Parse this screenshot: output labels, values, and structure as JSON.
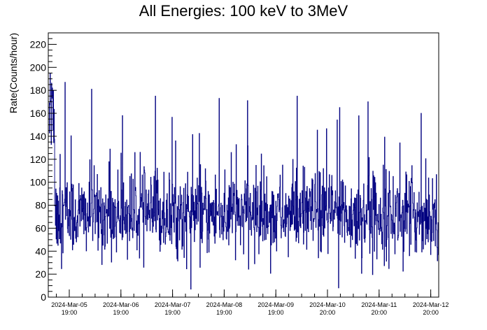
{
  "chart_data": {
    "type": "line",
    "title": "All Energies:  100 keV to 3MeV",
    "xlabel": "",
    "ylabel": "Rate(Counts/hour)",
    "ylim": [
      0,
      230
    ],
    "yticks": [
      0,
      20,
      40,
      60,
      80,
      100,
      120,
      140,
      160,
      180,
      200,
      220
    ],
    "xticks": [
      {
        "date": "2024-Mar-05",
        "time": "19:00"
      },
      {
        "date": "2024-Mar-06",
        "time": "19:00"
      },
      {
        "date": "2024-Mar-07",
        "time": "19:00"
      },
      {
        "date": "2024-Mar-08",
        "time": "19:00"
      },
      {
        "date": "2024-Mar-09",
        "time": "19:00"
      },
      {
        "date": "2024-Mar-10",
        "time": "20:00"
      },
      {
        "date": "2024-Mar-11",
        "time": "20:00"
      },
      {
        "date": "2024-Mar-12",
        "time": "20:00"
      }
    ],
    "grid": false,
    "line_color": "#000080",
    "series_summary": {
      "typical_range": [
        40,
        110
      ],
      "mean": 72,
      "early_spike_max": 195,
      "notable_peaks": [
        187,
        181,
        175,
        175,
        173,
        171,
        170,
        165,
        160
      ],
      "minimum": 7
    }
  }
}
